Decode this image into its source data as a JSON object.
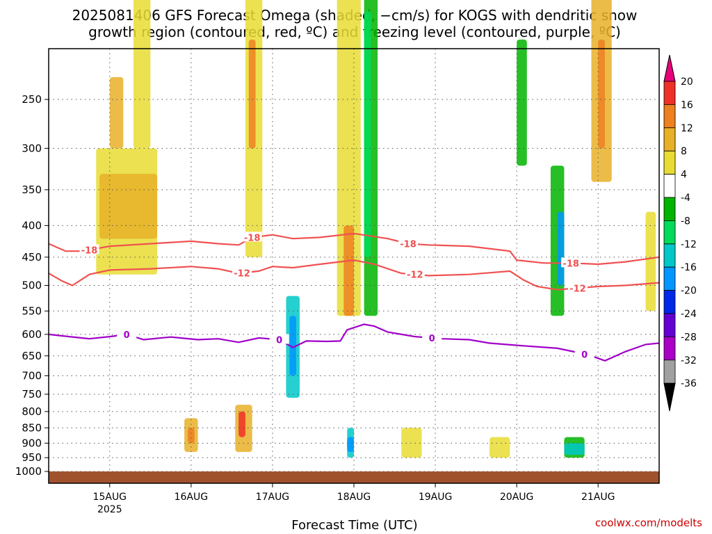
{
  "chart_data": {
    "type": "heatmap",
    "title_line1": "2025081406 GFS Forecast Omega (shaded, −cm/s) for KOGS with dendritic snow",
    "title_line2": "growth region (contoured, red, ºC) and freezing level (contoured, purple, ºC)",
    "xlabel": "Forecast Time (UTC)",
    "credit": "coolwx.com/modelts",
    "x_ticks": [
      {
        "label": "15AUG",
        "sub": "2025",
        "hours": 18
      },
      {
        "label": "16AUG",
        "sub": "",
        "hours": 42
      },
      {
        "label": "17AUG",
        "sub": "",
        "hours": 66
      },
      {
        "label": "18AUG",
        "sub": "",
        "hours": 90
      },
      {
        "label": "19AUG",
        "sub": "",
        "hours": 114
      },
      {
        "label": "20AUG",
        "sub": "",
        "hours": 138
      },
      {
        "label": "21AUG",
        "sub": "",
        "hours": 162
      }
    ],
    "xlim_hours": [
      0,
      180
    ],
    "y_ticks": [
      250,
      300,
      350,
      400,
      450,
      500,
      550,
      600,
      650,
      700,
      750,
      800,
      850,
      900,
      950,
      1000
    ],
    "ylim_hPa": [
      1010,
      200
    ],
    "y_scale": "log-pressure",
    "grid": true,
    "colorbar": {
      "levels": [
        "20",
        "16",
        "12",
        "8",
        "4",
        "-4",
        "-8",
        "-12",
        "-16",
        "-20",
        "-24",
        "-28",
        "-32",
        "-36"
      ],
      "colors": [
        "#e8007a",
        "#ee3028",
        "#ee8020",
        "#e8b028",
        "#e8dc32",
        "#ffffff",
        "#00b400",
        "#00dc5a",
        "#00c8c8",
        "#0096ff",
        "#0028e8",
        "#6400d2",
        "#aa00c8",
        "#a0a0a0",
        "#000000"
      ]
    },
    "ground_color": "#a0522d",
    "contours": [
      {
        "label": "-18",
        "color": "#f05050",
        "label_at_hours": [
          12,
          60,
          106,
          154
        ],
        "points": [
          [
            0,
            428
          ],
          [
            5,
            440
          ],
          [
            10,
            440
          ],
          [
            18,
            432
          ],
          [
            30,
            428
          ],
          [
            42,
            424
          ],
          [
            50,
            428
          ],
          [
            56,
            430
          ],
          [
            60,
            418
          ],
          [
            66,
            414
          ],
          [
            72,
            420
          ],
          [
            80,
            418
          ],
          [
            90,
            412
          ],
          [
            100,
            420
          ],
          [
            106,
            428
          ],
          [
            112,
            430
          ],
          [
            124,
            432
          ],
          [
            136,
            440
          ],
          [
            138,
            455
          ],
          [
            146,
            460
          ],
          [
            154,
            460
          ],
          [
            162,
            462
          ],
          [
            170,
            458
          ],
          [
            180,
            450
          ]
        ]
      },
      {
        "label": "-12",
        "color": "#f05050",
        "label_at_hours": [
          57,
          108,
          156
        ],
        "points": [
          [
            0,
            478
          ],
          [
            4,
            492
          ],
          [
            7,
            500
          ],
          [
            12,
            480
          ],
          [
            18,
            472
          ],
          [
            30,
            470
          ],
          [
            42,
            466
          ],
          [
            50,
            470
          ],
          [
            56,
            478
          ],
          [
            62,
            474
          ],
          [
            66,
            466
          ],
          [
            72,
            468
          ],
          [
            80,
            462
          ],
          [
            90,
            455
          ],
          [
            96,
            462
          ],
          [
            104,
            478
          ],
          [
            112,
            482
          ],
          [
            124,
            480
          ],
          [
            136,
            474
          ],
          [
            140,
            490
          ],
          [
            144,
            502
          ],
          [
            150,
            508
          ],
          [
            156,
            505
          ],
          [
            162,
            502
          ],
          [
            170,
            500
          ],
          [
            180,
            495
          ]
        ]
      },
      {
        "label": "0",
        "color": "#a000c8",
        "label_at_hours": [
          23,
          68,
          113,
          158
        ],
        "points": [
          [
            0,
            600
          ],
          [
            6,
            605
          ],
          [
            12,
            610
          ],
          [
            18,
            605
          ],
          [
            23,
            600
          ],
          [
            28,
            612
          ],
          [
            36,
            606
          ],
          [
            44,
            612
          ],
          [
            50,
            610
          ],
          [
            56,
            618
          ],
          [
            62,
            608
          ],
          [
            68,
            612
          ],
          [
            72,
            630
          ],
          [
            76,
            615
          ],
          [
            82,
            616
          ],
          [
            86,
            615
          ],
          [
            88,
            590
          ],
          [
            93,
            578
          ],
          [
            96,
            582
          ],
          [
            100,
            595
          ],
          [
            108,
            605
          ],
          [
            116,
            610
          ],
          [
            124,
            612
          ],
          [
            130,
            620
          ],
          [
            138,
            625
          ],
          [
            150,
            632
          ],
          [
            156,
            642
          ],
          [
            160,
            650
          ],
          [
            164,
            662
          ],
          [
            170,
            640
          ],
          [
            176,
            623
          ],
          [
            180,
            620
          ]
        ]
      }
    ]
  }
}
